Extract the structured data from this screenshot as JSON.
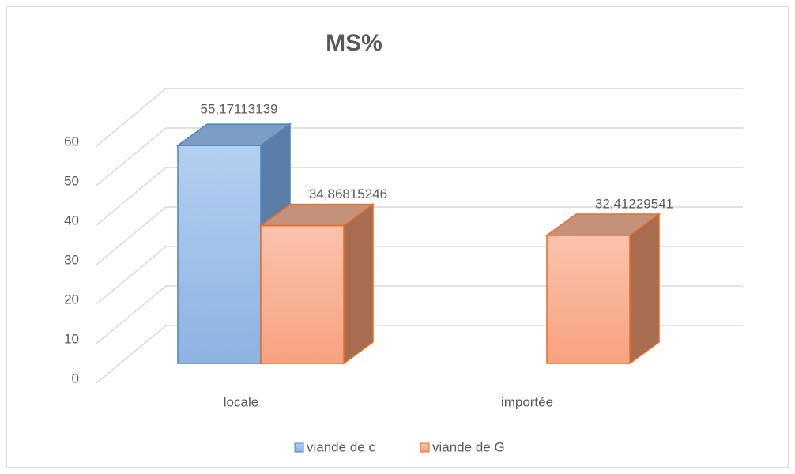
{
  "chart_data": {
    "type": "bar3d",
    "title": "MS%",
    "categories": [
      "locale",
      "importée"
    ],
    "series": [
      {
        "name": "viande de c",
        "color": "#8fb4e3",
        "values": [
          55.17113139,
          null
        ],
        "value_labels": [
          "55,17113139",
          null
        ]
      },
      {
        "name": "viande de G",
        "color": "#f7a27f",
        "values": [
          34.86815246,
          32.41229541
        ],
        "value_labels": [
          "34,86815246",
          "32,41229541"
        ]
      }
    ],
    "ylim": [
      0,
      60
    ],
    "yticks": [
      0,
      10,
      20,
      30,
      40,
      50,
      60
    ],
    "grid": true,
    "legend": "bottom"
  }
}
